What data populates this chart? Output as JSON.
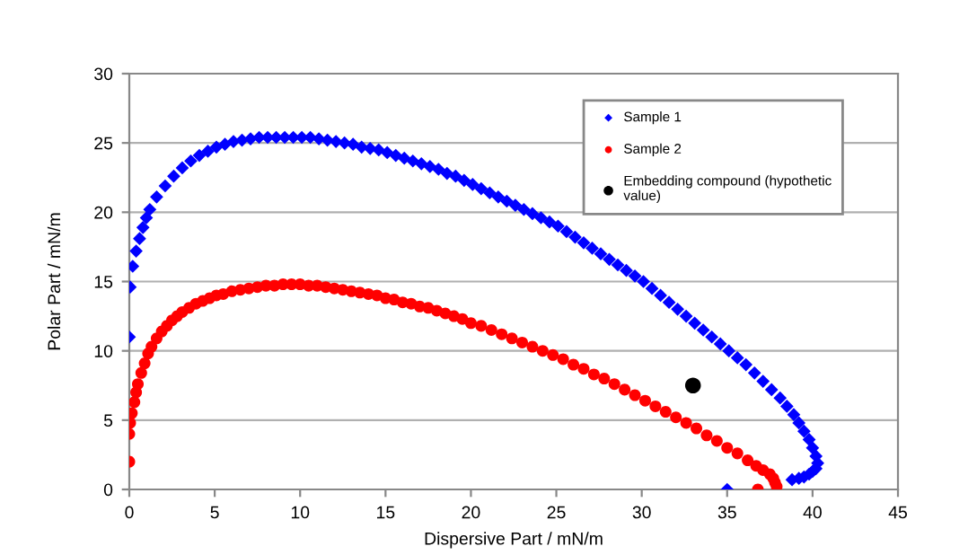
{
  "chart_data": {
    "type": "scatter",
    "xlabel": "Dispersive Part / mN/m",
    "ylabel": "Polar Part / mN/m",
    "xlim": [
      0,
      45
    ],
    "xticks": [
      0,
      5,
      10,
      15,
      20,
      25,
      30,
      35,
      40,
      45
    ],
    "ylim": [
      0,
      30
    ],
    "yticks": [
      0,
      5,
      10,
      15,
      20,
      25,
      30
    ],
    "grid": "y",
    "legend": "top right",
    "series": [
      {
        "name": "Sample 1",
        "color": "#0000ff",
        "marker": "diamond",
        "x": [
          0,
          0.05,
          0.2,
          0.4,
          0.6,
          0.8,
          1,
          1.2,
          1.6,
          2.1,
          2.6,
          3.1,
          3.6,
          4.1,
          4.6,
          5.1,
          5.6,
          6.1,
          6.6,
          7.1,
          7.6,
          8.1,
          8.6,
          9.1,
          9.6,
          10.1,
          10.6,
          11.1,
          11.6,
          12.1,
          12.6,
          13.1,
          13.6,
          14.1,
          14.6,
          15.1,
          15.6,
          16.1,
          16.6,
          17.1,
          17.6,
          18.1,
          18.6,
          19.1,
          19.6,
          20.1,
          20.6,
          21.1,
          21.6,
          22.1,
          22.6,
          23.1,
          23.6,
          24.1,
          24.6,
          25.1,
          25.6,
          26.1,
          26.6,
          27.1,
          27.6,
          28.1,
          28.6,
          29.1,
          29.6,
          30.1,
          30.6,
          31.1,
          31.6,
          32.1,
          32.6,
          33.1,
          33.6,
          34.1,
          34.6,
          35.1,
          35.6,
          36.1,
          36.6,
          37.1,
          37.6,
          38.1,
          38.5,
          38.9,
          39.2,
          39.5,
          39.8,
          40,
          40.2,
          40.3,
          40.2,
          40,
          39.8,
          39.5,
          39.2,
          38.8,
          35
        ],
        "values": [
          11,
          14.6,
          16.1,
          17.2,
          18.1,
          18.9,
          19.6,
          20.2,
          21.1,
          21.9,
          22.6,
          23.2,
          23.7,
          24.1,
          24.4,
          24.7,
          24.9,
          25.1,
          25.2,
          25.3,
          25.4,
          25.4,
          25.4,
          25.4,
          25.4,
          25.4,
          25.4,
          25.3,
          25.2,
          25.1,
          25,
          24.9,
          24.7,
          24.6,
          24.5,
          24.3,
          24.1,
          23.9,
          23.7,
          23.5,
          23.3,
          23.1,
          22.8,
          22.6,
          22.3,
          22,
          21.7,
          21.4,
          21.1,
          20.8,
          20.5,
          20.2,
          19.9,
          19.6,
          19.3,
          19,
          18.6,
          18.2,
          17.8,
          17.4,
          17,
          16.6,
          16.2,
          15.8,
          15.4,
          15,
          14.5,
          14,
          13.5,
          13,
          12.5,
          12,
          11.5,
          11,
          10.5,
          10,
          9.5,
          9,
          8.4,
          7.8,
          7.2,
          6.6,
          6,
          5.4,
          4.8,
          4.2,
          3.6,
          3,
          2.4,
          1.9,
          1.5,
          1.3,
          1.1,
          0.9,
          0.8,
          0.7,
          0
        ]
      },
      {
        "name": "Sample 2",
        "color": "#ff0000",
        "marker": "circle",
        "x": [
          0,
          0,
          0.05,
          0.15,
          0.3,
          0.4,
          0.5,
          0.7,
          0.9,
          1.1,
          1.3,
          1.6,
          1.9,
          2.2,
          2.5,
          2.8,
          3.1,
          3.5,
          3.9,
          4.3,
          4.7,
          5.1,
          5.5,
          6,
          6.5,
          7,
          7.5,
          8,
          8.5,
          9,
          9.5,
          10,
          10.5,
          11,
          11.5,
          12,
          12.5,
          13,
          13.5,
          14,
          14.5,
          15,
          15.5,
          16,
          16.5,
          17,
          17.5,
          18,
          18.5,
          19,
          19.5,
          20,
          20.6,
          21.2,
          21.8,
          22.4,
          23,
          23.6,
          24.2,
          24.8,
          25.4,
          26,
          26.6,
          27.2,
          27.8,
          28.4,
          29,
          29.6,
          30.2,
          30.8,
          31.4,
          32,
          32.6,
          33.2,
          33.8,
          34.4,
          35,
          35.6,
          36.2,
          36.7,
          37.1,
          37.5,
          37.7,
          37.8,
          37.9,
          36.8
        ],
        "values": [
          2,
          4,
          4.8,
          5.5,
          6.3,
          7,
          7.6,
          8.4,
          9.1,
          9.8,
          10.3,
          10.9,
          11.4,
          11.8,
          12.2,
          12.5,
          12.8,
          13.1,
          13.4,
          13.6,
          13.8,
          14,
          14.1,
          14.3,
          14.4,
          14.5,
          14.6,
          14.7,
          14.7,
          14.8,
          14.8,
          14.8,
          14.7,
          14.7,
          14.6,
          14.5,
          14.4,
          14.3,
          14.2,
          14.1,
          14,
          13.8,
          13.7,
          13.5,
          13.4,
          13.2,
          13.1,
          12.9,
          12.7,
          12.5,
          12.3,
          12,
          11.8,
          11.5,
          11.2,
          10.9,
          10.6,
          10.3,
          10,
          9.7,
          9.4,
          9,
          8.7,
          8.3,
          8,
          7.6,
          7.2,
          6.8,
          6.4,
          6,
          5.6,
          5.2,
          4.8,
          4.4,
          3.9,
          3.5,
          3,
          2.6,
          2.1,
          1.7,
          1.4,
          1.1,
          0.8,
          0.5,
          0.2,
          0
        ]
      },
      {
        "name": "Embedding compound (hypothetic\nvalue)",
        "color": "#000000",
        "marker": "circle",
        "x": [
          33
        ],
        "values": [
          7.5
        ]
      }
    ]
  }
}
